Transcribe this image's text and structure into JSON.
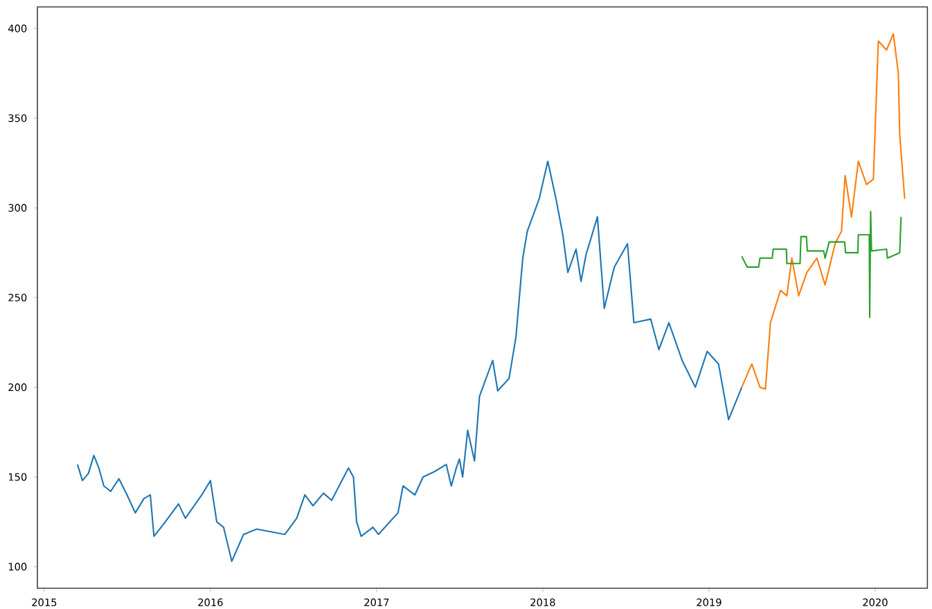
{
  "chart_data": {
    "type": "line",
    "xlim": [
      "2014-12-17",
      "2020-04-25"
    ],
    "ylim": [
      88,
      412
    ],
    "xticks": [
      "2015",
      "2016",
      "2017",
      "2018",
      "2019",
      "2020"
    ],
    "yticks": [
      100,
      150,
      200,
      250,
      300,
      350,
      400
    ],
    "grid": false,
    "marker": "none",
    "line_style": "solid",
    "series": [
      {
        "color": "#1f77b4",
        "x": [
          "2015-03-15",
          "2015-03-26",
          "2015-04-08",
          "2015-04-20",
          "2015-05-01",
          "2015-05-12",
          "2015-05-27",
          "2015-06-14",
          "2015-07-02",
          "2015-07-20",
          "2015-08-08",
          "2015-08-22",
          "2015-08-30",
          "2015-09-21",
          "2015-10-23",
          "2015-11-07",
          "2015-12-13",
          "2016-01-01",
          "2016-01-15",
          "2016-01-30",
          "2016-02-17",
          "2016-03-14",
          "2016-04-12",
          "2016-06-13",
          "2016-07-09",
          "2016-07-27",
          "2016-08-14",
          "2016-09-06",
          "2016-09-24",
          "2016-10-31",
          "2016-11-11",
          "2016-11-18",
          "2016-11-28",
          "2016-12-24",
          "2017-01-05",
          "2017-01-30",
          "2017-02-17",
          "2017-02-28",
          "2017-03-26",
          "2017-04-13",
          "2017-05-08",
          "2017-06-03",
          "2017-06-14",
          "2017-06-25",
          "2017-07-02",
          "2017-07-09",
          "2017-07-20",
          "2017-08-04",
          "2017-08-15",
          "2017-09-13",
          "2017-09-24",
          "2017-10-19",
          "2017-11-03",
          "2017-11-18",
          "2017-11-28",
          "2017-12-24",
          "2018-01-12",
          "2018-01-30",
          "2018-02-14",
          "2018-02-25",
          "2018-03-15",
          "2018-03-26",
          "2018-04-06",
          "2018-05-01",
          "2018-05-16",
          "2018-06-07",
          "2018-07-06",
          "2018-07-20",
          "2018-08-26",
          "2018-09-13",
          "2018-10-05",
          "2018-11-03",
          "2018-12-02",
          "2018-12-28",
          "2019-01-22",
          "2019-02-13",
          "2019-03-14"
        ],
        "values": [
          157,
          148,
          152,
          162,
          155,
          145,
          142,
          149,
          140,
          130,
          138,
          140,
          117,
          124,
          135,
          127,
          140,
          148,
          125,
          122,
          103,
          118,
          121,
          118,
          127,
          140,
          134,
          141,
          137,
          155,
          150,
          125,
          117,
          122,
          118,
          125,
          130,
          145,
          140,
          150,
          153,
          157,
          145,
          155,
          160,
          150,
          176,
          159,
          195,
          215,
          198,
          205,
          228,
          272,
          287,
          305,
          326,
          305,
          285,
          264,
          277,
          259,
          274,
          295,
          244,
          267,
          280,
          236,
          238,
          221,
          236,
          215,
          200,
          220,
          213,
          182,
          200
        ]
      },
      {
        "color": "#ff7f0e",
        "x": [
          "2019-03-14",
          "2019-04-05",
          "2019-04-23",
          "2019-05-05",
          "2019-05-16",
          "2019-06-07",
          "2019-06-21",
          "2019-07-02",
          "2019-07-17",
          "2019-08-04",
          "2019-08-26",
          "2019-09-13",
          "2019-10-05",
          "2019-10-19",
          "2019-10-27",
          "2019-11-10",
          "2019-11-25",
          "2019-12-13",
          "2019-12-28",
          "2020-01-08",
          "2020-01-26",
          "2020-02-10",
          "2020-02-21",
          "2020-02-24",
          "2020-03-06"
        ],
        "values": [
          200,
          213,
          200,
          199,
          236,
          254,
          251,
          272,
          251,
          264,
          272,
          257,
          280,
          287,
          318,
          295,
          326,
          313,
          316,
          393,
          388,
          397,
          375,
          341,
          305
        ]
      },
      {
        "color": "#2ca02c",
        "x": [
          "2019-03-14",
          "2019-03-26",
          "2019-04-20",
          "2019-04-23",
          "2019-05-20",
          "2019-05-22",
          "2019-06-20",
          "2019-06-21",
          "2019-07-20",
          "2019-07-22",
          "2019-08-03",
          "2019-08-05",
          "2019-09-10",
          "2019-09-13",
          "2019-09-22",
          "2019-10-26",
          "2019-10-28",
          "2019-11-24",
          "2019-11-25",
          "2019-12-19",
          "2019-12-20",
          "2019-12-22",
          "2019-12-24",
          "2020-01-26",
          "2020-01-28",
          "2020-02-24",
          "2020-02-27"
        ],
        "values": [
          273,
          267,
          267,
          272,
          272,
          277,
          277,
          269,
          269,
          284,
          284,
          276,
          276,
          272,
          281,
          281,
          275,
          275,
          285,
          285,
          239,
          298,
          276,
          277,
          272,
          275,
          295
        ]
      }
    ]
  }
}
